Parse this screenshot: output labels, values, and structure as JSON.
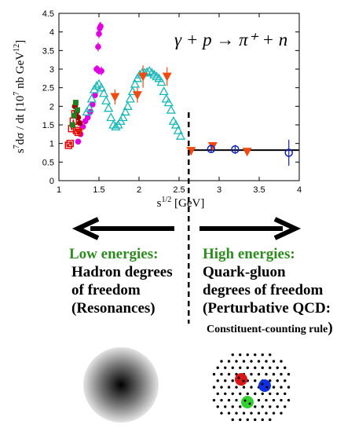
{
  "reaction": "γ + p → π⁺ + n",
  "chart_data": {
    "type": "scatter",
    "xlabel": "s^{1/2} [GeV]",
    "ylabel": "s^7 dσ / dt [10^7 nb GeV^12]",
    "xlim": [
      1,
      4
    ],
    "ylim": [
      0,
      4.5
    ],
    "xticks": [
      "1",
      "1.5",
      "2",
      "2.5",
      "3",
      "3.5",
      "4"
    ],
    "yticks": [
      "0",
      "0.5",
      "1",
      "1.5",
      "2",
      "2.5",
      "3",
      "3.5",
      "4",
      "4.5"
    ],
    "fit_line": {
      "x": [
        2.62,
        4.0
      ],
      "y": [
        0.82,
        0.82
      ]
    },
    "divider_x": 2.62,
    "series": [
      {
        "marker": "circle-filled",
        "color": "#e000e0",
        "x": [
          1.24,
          1.27,
          1.3,
          1.33,
          1.36,
          1.39,
          1.42,
          1.45,
          1.48,
          1.49,
          1.5,
          1.51,
          1.52,
          1.47,
          1.5,
          1.53
        ],
        "y": [
          1.05,
          1.25,
          1.45,
          1.6,
          1.7,
          1.85,
          2.05,
          2.3,
          3.0,
          3.6,
          3.95,
          4.1,
          4.15,
          3.0,
          2.95,
          2.95
        ],
        "err": [
          0.05,
          0.05,
          0.05,
          0.05,
          0.05,
          0.05,
          0.06,
          0.08,
          0.1,
          0.12,
          0.12,
          0.15,
          0.12,
          0.1,
          0.1,
          0.12
        ]
      },
      {
        "marker": "triangle-open",
        "color": "#1ab8b8",
        "x": [
          1.35,
          1.38,
          1.41,
          1.44,
          1.47,
          1.5,
          1.53,
          1.56,
          1.59,
          1.62,
          1.65,
          1.68,
          1.71,
          1.74,
          1.77,
          1.8,
          1.83,
          1.86,
          1.89,
          1.92,
          1.95,
          1.98,
          2.01,
          2.04,
          2.07,
          2.1,
          2.13,
          2.16,
          2.19,
          2.22,
          2.25,
          2.28,
          2.31,
          2.34,
          2.37,
          2.4,
          2.43,
          2.46,
          2.49,
          2.52
        ],
        "y": [
          1.85,
          1.95,
          2.2,
          2.45,
          2.55,
          2.6,
          2.5,
          2.35,
          2.15,
          1.95,
          1.7,
          1.5,
          1.45,
          1.5,
          1.6,
          1.7,
          1.85,
          2.0,
          2.2,
          2.4,
          2.6,
          2.75,
          2.85,
          2.9,
          2.9,
          2.92,
          2.95,
          2.9,
          2.85,
          2.8,
          2.75,
          2.65,
          2.4,
          2.2,
          2.1,
          1.9,
          1.6,
          1.5,
          1.35,
          1.2
        ],
        "err": []
      },
      {
        "marker": "triangle-down-filled",
        "color": "#f04a10",
        "x": [
          1.25,
          1.7,
          1.98,
          2.05,
          2.35,
          2.65,
          2.92,
          3.35
        ],
        "y": [
          1.3,
          2.25,
          2.3,
          2.8,
          2.8,
          0.8,
          0.93,
          0.78
        ],
        "err": [
          0.1,
          0.2,
          0.2,
          0.3,
          0.25,
          0.1,
          0.1,
          0.05
        ]
      },
      {
        "marker": "square-open-dot",
        "color": "#e00000",
        "x": [
          1.12,
          1.14,
          1.16,
          1.18,
          1.2,
          1.22,
          1.24
        ],
        "y": [
          0.95,
          1.0,
          1.4,
          1.6,
          1.8,
          1.35,
          1.3
        ],
        "err": [
          0.05,
          0.05,
          0.05,
          0.05,
          0.05,
          0.05,
          0.05
        ]
      },
      {
        "marker": "circle-filled",
        "color": "#a00000",
        "x": [
          1.2,
          1.22,
          1.24,
          1.26
        ],
        "y": [
          2.0,
          1.85,
          1.7,
          1.55
        ],
        "err": [
          0.05,
          0.05,
          0.05,
          0.05
        ]
      },
      {
        "marker": "square-filled",
        "color": "#208020",
        "x": [
          1.17,
          1.19,
          1.21,
          1.23
        ],
        "y": [
          1.5,
          1.75,
          2.1,
          1.9
        ],
        "err": [
          0.05,
          0.05,
          0.05,
          0.05
        ]
      },
      {
        "marker": "circle-open",
        "color": "#1020c0",
        "x": [
          2.9,
          3.2,
          3.87
        ],
        "y": [
          0.85,
          0.84,
          0.75
        ],
        "err": [
          0.08,
          0.12,
          0.35
        ]
      }
    ]
  },
  "low": {
    "title": "Low energies:",
    "lines": [
      "Hadron degrees",
      "of freedom",
      "(Resonances)"
    ]
  },
  "high": {
    "title": "High energies:",
    "lines": [
      "Quark-gluon",
      "degrees of freedom",
      "(Perturbative QCD:"
    ],
    "rule": "Constituent-counting rule",
    "close_paren": ")"
  },
  "colors": {
    "quark_red": "#d81818",
    "quark_blue": "#1030e0",
    "quark_green": "#30d030",
    "title_green": "#2e8b1f"
  }
}
